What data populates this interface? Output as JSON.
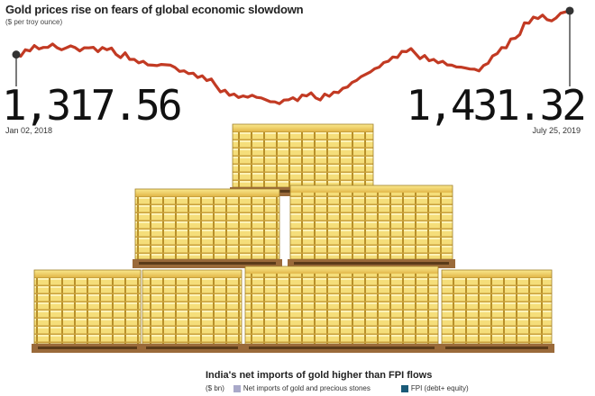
{
  "chart_data": {
    "type": "line",
    "title": "Gold prices rise on fears of global economic slowdown",
    "subtitle": "($ per troy ounce)",
    "start": {
      "value": "1,317.56",
      "date": "Jan 02, 2018"
    },
    "end": {
      "value": "1,431.32",
      "date": "July 25, 2019"
    },
    "series": [
      {
        "values": [
          1317.56,
          1330,
          1341,
          1336,
          1345,
          1330,
          1340,
          1327,
          1335,
          1325,
          1330,
          1318,
          1322,
          1305,
          1300,
          1290,
          1292,
          1290,
          1274,
          1268,
          1258,
          1250,
          1237,
          1225,
          1215,
          1210,
          1212,
          1205,
          1195,
          1190,
          1200,
          1198,
          1210,
          1205,
          1215,
          1220,
          1230,
          1245,
          1260,
          1272,
          1285,
          1300,
          1310,
          1325,
          1320,
          1315,
          1305,
          1300,
          1290,
          1285,
          1280,
          1275,
          1295,
          1320,
          1335,
          1360,
          1400,
          1415,
          1420,
          1405,
          1425,
          1431.32
        ]
      }
    ],
    "ylim": [
      1160,
      1450
    ]
  },
  "colors": {
    "line": "#c23a23",
    "endpoint": "#333333",
    "gold_light": "#f5de7a",
    "gold_dark": "#b8902a",
    "pallet": "#9a6a3a"
  },
  "bottom": {
    "title": "India's net imports of gold higher than FPI flows",
    "unit": "($ bn)",
    "legend": [
      {
        "label": "Net imports of gold and precious stones",
        "color": "#a9a9c9"
      },
      {
        "label": "FPI (debt+ equity)",
        "color": "#1a5a78"
      }
    ]
  }
}
